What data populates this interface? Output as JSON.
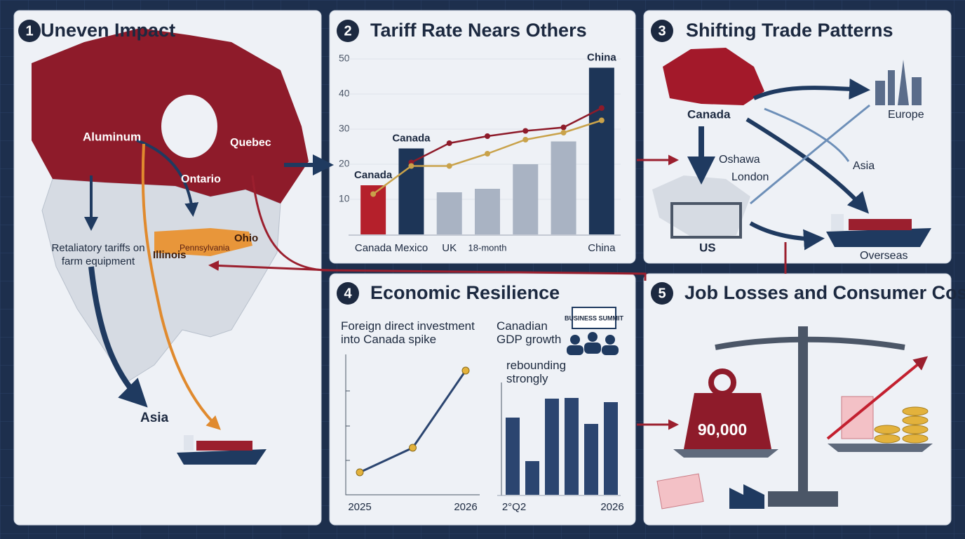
{
  "panels": [
    {
      "number": "1",
      "title": "Uneven Impact",
      "labels": [
        "Aluminum",
        "Ontario",
        "Quebec",
        "Pennsylvania",
        "Ohio",
        "Illinois",
        "Retaliatory tariffs on farm equipment",
        "Asia"
      ]
    },
    {
      "number": "2",
      "title": "Tariff Rate Nears Others",
      "labels": []
    },
    {
      "number": "3",
      "title": "Shifting Trade Patterns",
      "labels": [
        "Canada",
        "Europe",
        "Oshawa",
        "London",
        "Asia",
        "US",
        "Overseas"
      ]
    },
    {
      "number": "4",
      "title": "Economic Resilience",
      "labels": [
        "BUSINESS SUMMIT"
      ]
    },
    {
      "number": "5",
      "title": "Job Losses and Consumer Costs",
      "labels": [
        "90,000"
      ]
    }
  ],
  "chart_data": [
    {
      "type": "bar",
      "categories": [
        "Canada",
        "Mexico",
        "UK",
        "18-month",
        null,
        null,
        "China"
      ],
      "values": [
        14,
        24.5,
        12,
        13,
        20,
        26.5,
        47.5
      ],
      "bar_labels": [
        "Canada",
        "Canada",
        null,
        null,
        null,
        null,
        "China"
      ],
      "colors": [
        "#b5202b",
        "#1d3557",
        "#a9b3c3",
        "#a9b3c3",
        "#a9b3c3",
        "#a9b3c3",
        "#1d3557"
      ],
      "series": [
        {
          "color": "#8e1b2a",
          "values": [
            null,
            20.5,
            26,
            28,
            29.5,
            30.5,
            36
          ]
        },
        {
          "color": "#c9a24a",
          "values": [
            11.5,
            19.5,
            19.5,
            23,
            27,
            29,
            32.5
          ]
        }
      ],
      "ylim": [
        0,
        50
      ],
      "yticks": [
        10,
        20,
        30,
        40,
        50
      ]
    },
    {
      "type": "line",
      "title": "Foreign direct investment into Canada spike",
      "categories": [
        "2025",
        null,
        "2026"
      ],
      "values": [
        16,
        33.5,
        88.5
      ],
      "color": "#2b4570",
      "ylim": [
        0,
        100
      ]
    },
    {
      "type": "bar",
      "title": "Canadian GDP growth",
      "subtitle": "rebounding strongly",
      "categories": [
        "2°Q2",
        null,
        null,
        null,
        null,
        "2026"
      ],
      "values": [
        55,
        24,
        68.5,
        69,
        50.5,
        66
      ],
      "color": "#2b4570",
      "ylim": [
        0,
        100
      ]
    }
  ]
}
